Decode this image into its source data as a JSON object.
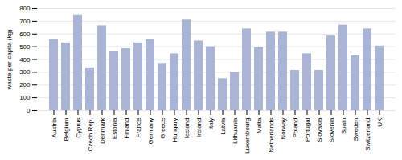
{
  "chart_data": {
    "type": "bar",
    "categories": [
      "Austria",
      "Belgium",
      "Cyprus",
      "Czech Rep.",
      "Denmark",
      "Estonia",
      "Finland",
      "France",
      "Germany",
      "Greece",
      "Hungary",
      "Iceland",
      "Ireland",
      "Italy",
      "Latvia",
      "Lithuania",
      "Luxembourg",
      "Malta",
      "Netherlands",
      "Norway",
      "Poland",
      "Portugal",
      "Slovakia",
      "Slovenia",
      "Spain",
      "Sweden",
      "Switzerland",
      "UK"
    ],
    "values": [
      555,
      530,
      745,
      335,
      665,
      460,
      485,
      530,
      555,
      370,
      445,
      710,
      545,
      500,
      250,
      300,
      640,
      495,
      615,
      615,
      315,
      445,
      315,
      585,
      670,
      430,
      640,
      505
    ],
    "color": "#aab4d4",
    "ylabel": "waste-per-capita (kg)",
    "ylim": [
      0,
      800
    ],
    "yticks": [
      0,
      100,
      200,
      300,
      400,
      500,
      600,
      700,
      800
    ],
    "grid": true
  }
}
